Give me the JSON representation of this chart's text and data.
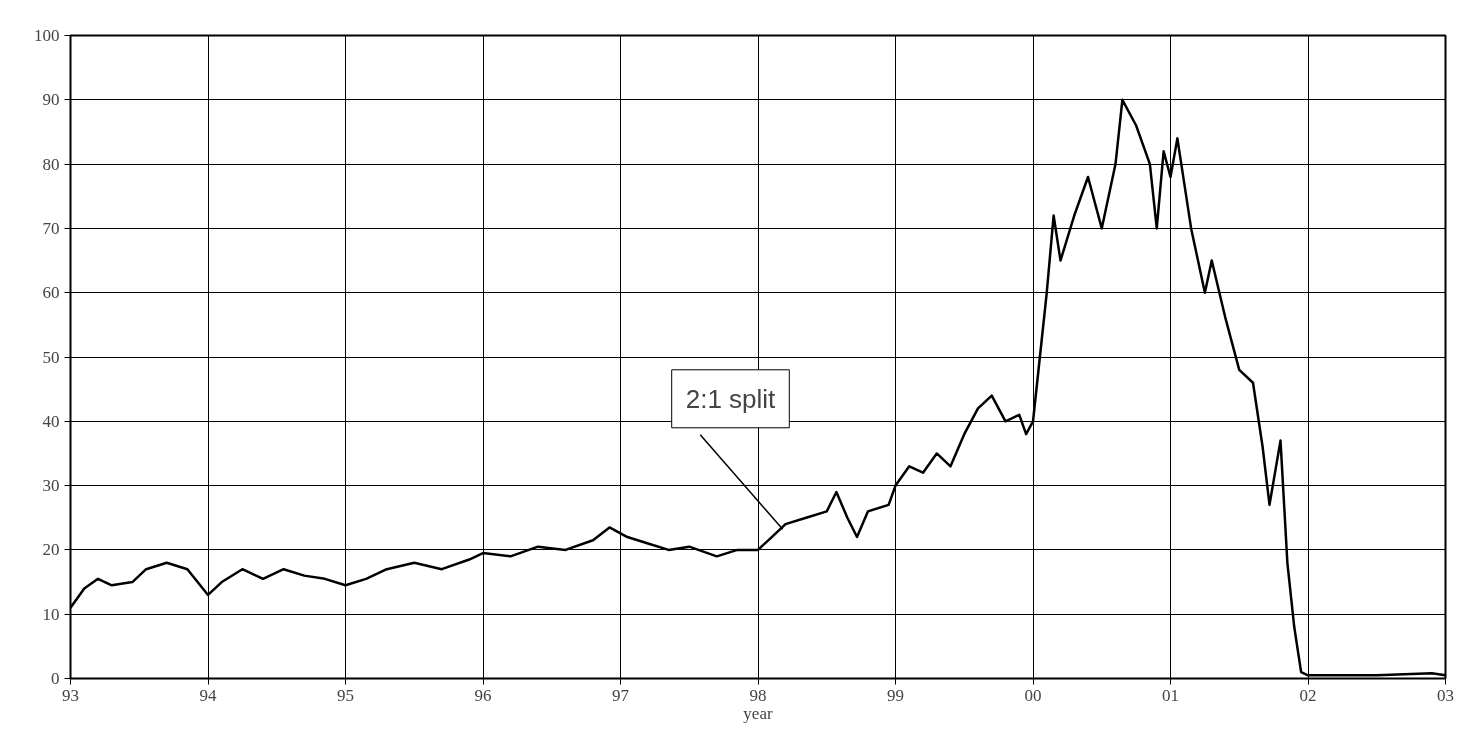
{
  "chart_data": {
    "type": "line",
    "xlabel": "year",
    "color": "#000000",
    "x": [
      1993.0,
      1993.1,
      1993.2,
      1993.3,
      1993.45,
      1993.55,
      1993.7,
      1993.85,
      1994.0,
      1994.1,
      1994.25,
      1994.4,
      1994.55,
      1994.7,
      1994.85,
      1995.0,
      1995.15,
      1995.3,
      1995.5,
      1995.7,
      1995.9,
      1996.0,
      1996.2,
      1996.4,
      1996.6,
      1996.8,
      1996.92,
      1997.05,
      1997.2,
      1997.35,
      1997.5,
      1997.7,
      1997.85,
      1998.0,
      1998.1,
      1998.2,
      1998.35,
      1998.5,
      1998.57,
      1998.65,
      1998.72,
      1998.8,
      1998.95,
      1999.0,
      1999.1,
      1999.2,
      1999.3,
      1999.4,
      1999.5,
      1999.6,
      1999.7,
      1999.8,
      1999.9,
      1999.95,
      2000.0,
      2000.05,
      2000.1,
      2000.15,
      2000.2,
      2000.3,
      2000.4,
      2000.5,
      2000.6,
      2000.65,
      2000.75,
      2000.85,
      2000.9,
      2000.95,
      2001.0,
      2001.05,
      2001.15,
      2001.25,
      2001.3,
      2001.4,
      2001.5,
      2001.6,
      2001.67,
      2001.72,
      2001.8,
      2001.85,
      2001.9,
      2001.95,
      2002.0,
      2002.5,
      2002.9,
      2003.0
    ],
    "values": [
      11,
      14,
      15.5,
      14.5,
      15,
      17,
      18,
      17,
      13,
      15,
      17,
      15.5,
      17,
      16,
      15.5,
      14.5,
      15.5,
      17,
      18,
      17,
      18.5,
      19.5,
      19,
      20.5,
      20,
      21.5,
      23.5,
      22,
      21,
      20,
      20.5,
      19,
      20,
      20,
      22,
      24,
      25,
      26,
      29,
      25,
      22,
      26,
      27,
      30,
      33,
      32,
      35,
      33,
      38,
      42,
      44,
      40,
      41,
      38,
      40,
      50,
      60,
      72,
      65,
      72,
      78,
      70,
      80,
      90,
      86,
      80,
      70,
      82,
      78,
      84,
      70,
      60,
      65,
      56,
      48,
      46,
      36,
      27,
      37,
      18,
      8,
      1,
      0.5,
      0.5,
      0.8,
      0.5
    ],
    "xlim": [
      1993,
      2003
    ],
    "ylim": [
      0,
      100
    ],
    "xticks": [
      {
        "value": 1993,
        "label": "93"
      },
      {
        "value": 1994,
        "label": "94"
      },
      {
        "value": 1995,
        "label": "95"
      },
      {
        "value": 1996,
        "label": "96"
      },
      {
        "value": 1997,
        "label": "97"
      },
      {
        "value": 1998,
        "label": "98"
      },
      {
        "value": 1999,
        "label": "99"
      },
      {
        "value": 2000,
        "label": "00"
      },
      {
        "value": 2001,
        "label": "01"
      },
      {
        "value": 2002,
        "label": "02"
      },
      {
        "value": 2003,
        "label": "03"
      }
    ],
    "yticks": [
      0,
      10,
      20,
      30,
      40,
      50,
      60,
      70,
      80,
      90,
      100
    ],
    "grid": true,
    "annotations": [
      {
        "text": "2:1 split",
        "x": 1998.18,
        "y": 23.2
      }
    ]
  }
}
